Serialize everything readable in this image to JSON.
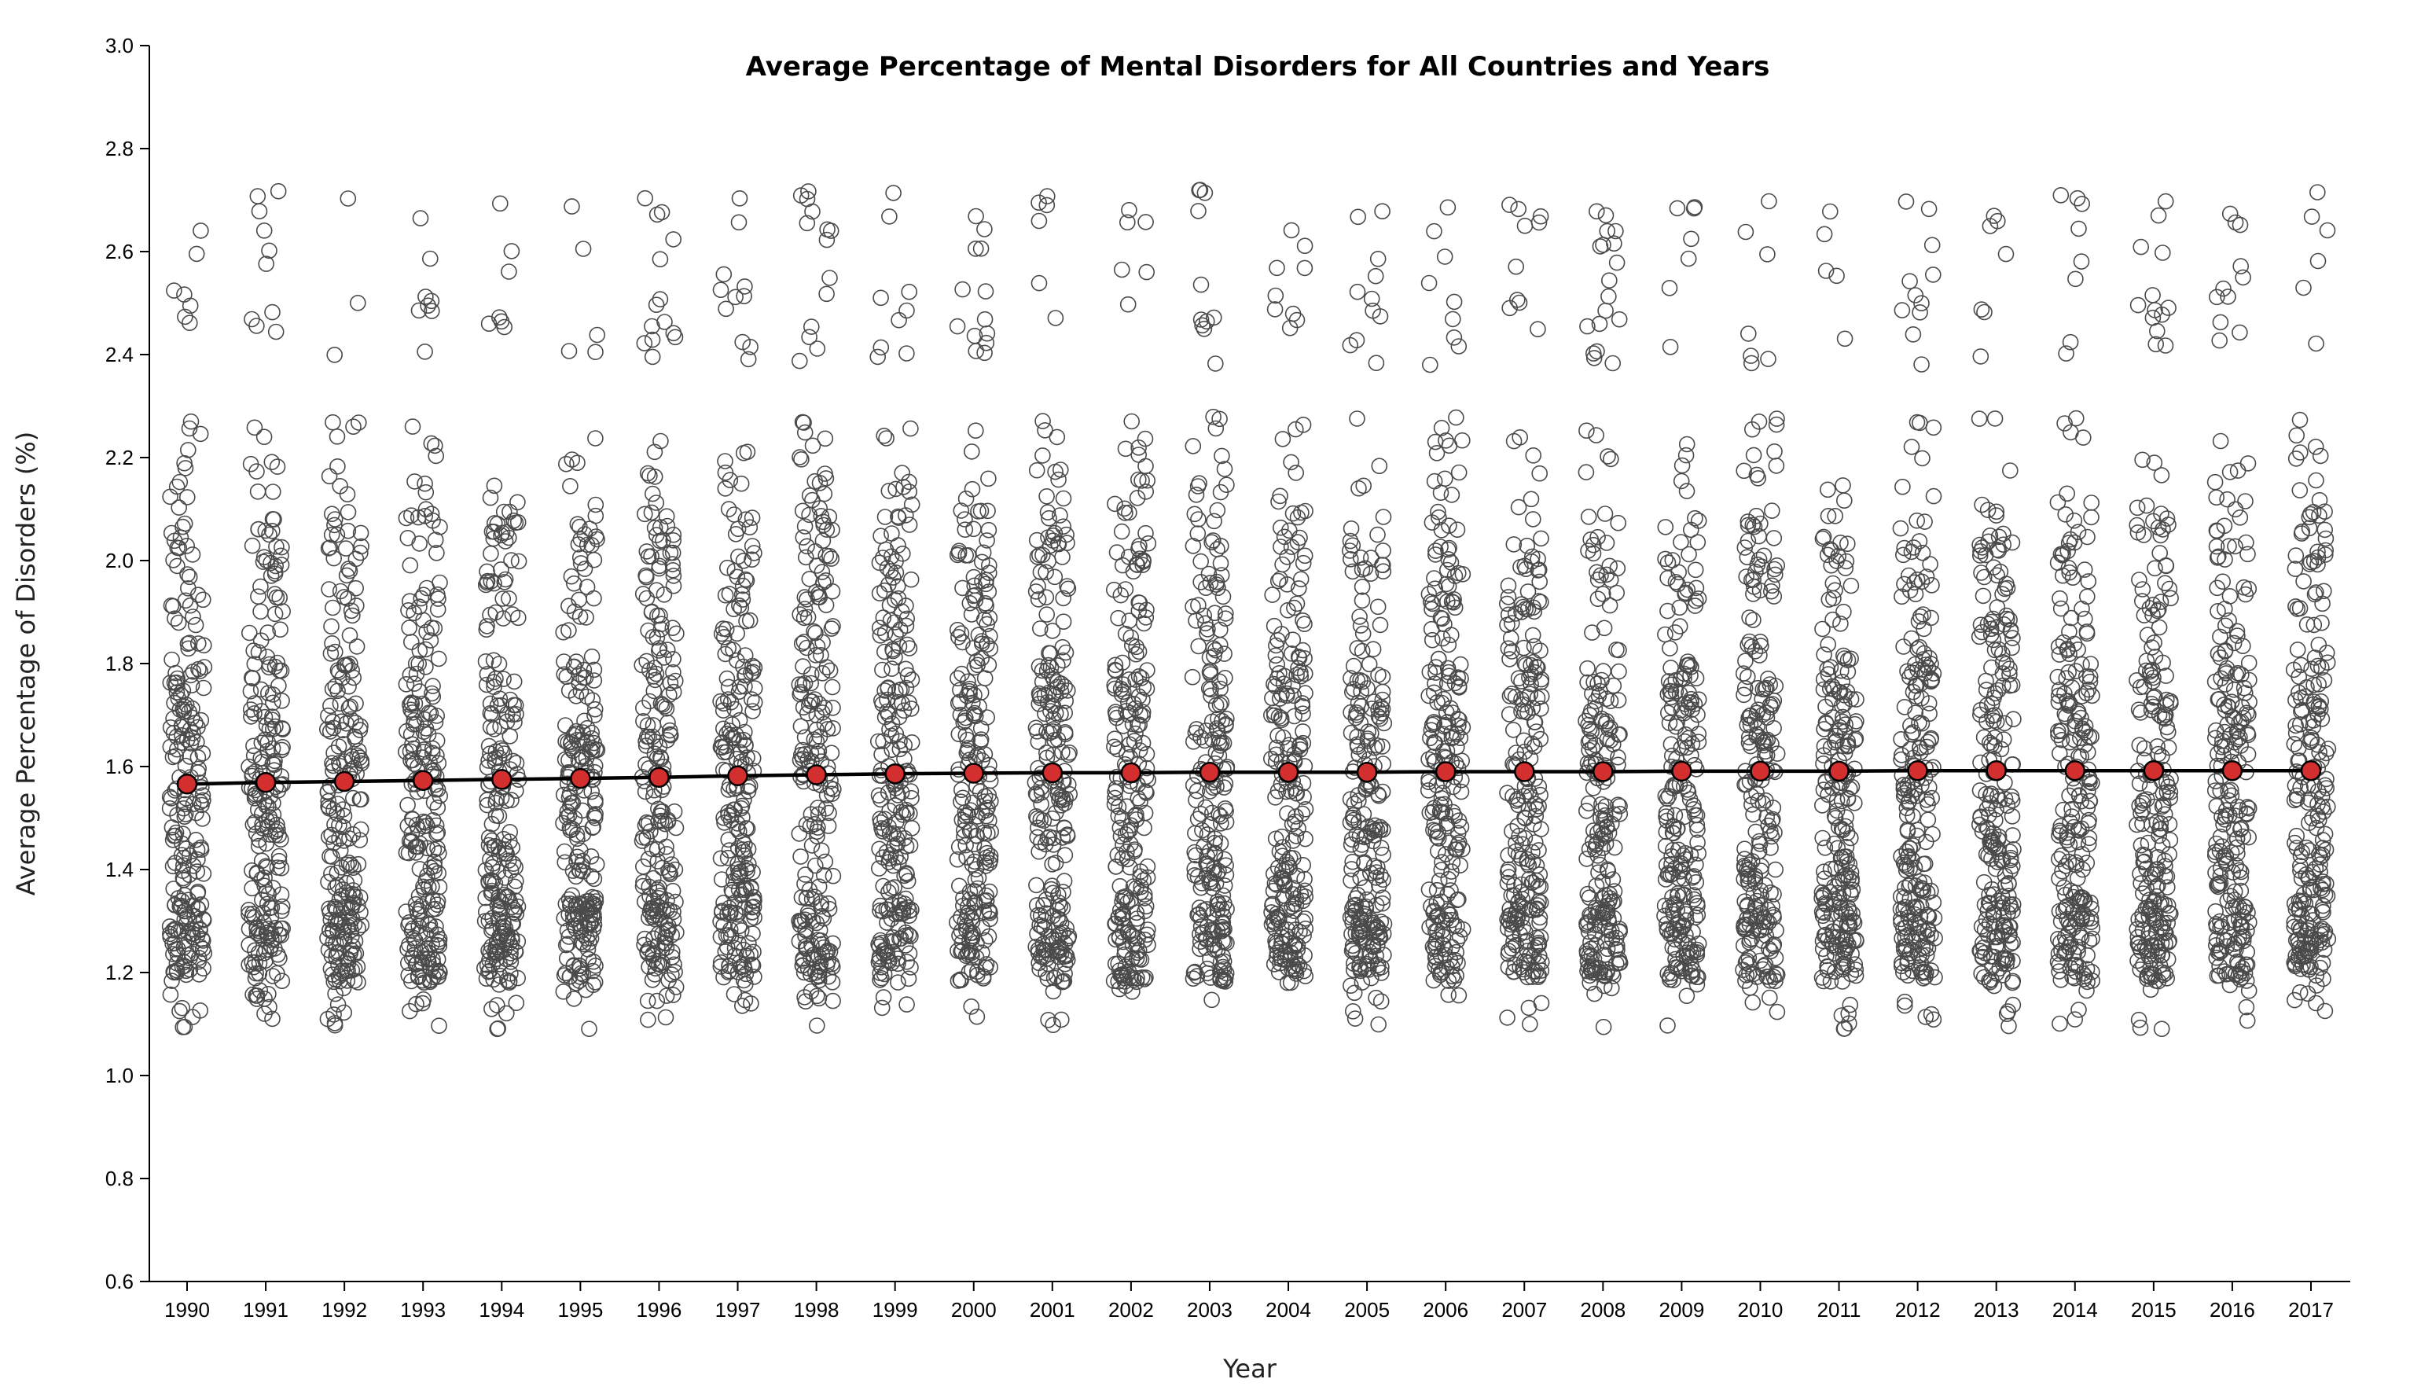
{
  "chart_data": {
    "type": "scatter",
    "title": "Average Percentage of Mental Disorders for All Countries and Years",
    "xlabel": "Year",
    "ylabel": "Average Percentage of Disorders (%)",
    "ylim": [
      0.6,
      3.0
    ],
    "yticks": [
      "0.6",
      "0.8",
      "1.0",
      "1.2",
      "1.4",
      "1.6",
      "1.8",
      "2.0",
      "2.2",
      "2.4",
      "2.6",
      "2.8",
      "3.0"
    ],
    "categories": [
      "1990",
      "1991",
      "1992",
      "1993",
      "1994",
      "1995",
      "1996",
      "1997",
      "1998",
      "1999",
      "2000",
      "2001",
      "2002",
      "2003",
      "2004",
      "2005",
      "2006",
      "2007",
      "2008",
      "2009",
      "2010",
      "2011",
      "2012",
      "2013",
      "2014",
      "2015",
      "2016",
      "2017"
    ],
    "mean_series": {
      "values": [
        1.566,
        1.569,
        1.571,
        1.573,
        1.575,
        1.577,
        1.579,
        1.582,
        1.584,
        1.586,
        1.587,
        1.588,
        1.588,
        1.589,
        1.589,
        1.589,
        1.59,
        1.59,
        1.59,
        1.591,
        1.591,
        1.591,
        1.592,
        1.592,
        1.592,
        1.592,
        1.592,
        1.592
      ],
      "color": "#d32f2f",
      "line_color": "#000000"
    },
    "country_points": {
      "count_per_year": 230,
      "range": [
        1.09,
        2.72
      ],
      "marker": "open-circle",
      "color": "#4a4a4a",
      "distribution": [
        {
          "range": [
            1.18,
            1.34
          ],
          "share": 0.28
        },
        {
          "range": [
            1.34,
            1.56
          ],
          "share": 0.22
        },
        {
          "range": [
            1.56,
            1.8
          ],
          "share": 0.24
        },
        {
          "range": [
            1.8,
            2.1
          ],
          "share": 0.16
        },
        {
          "range": [
            2.1,
            2.28
          ],
          "share": 0.04
        },
        {
          "range": [
            2.38,
            2.72
          ],
          "share": 0.04
        },
        {
          "range": [
            1.09,
            1.18
          ],
          "share": 0.02
        }
      ]
    },
    "grid": false,
    "legend": "none"
  }
}
